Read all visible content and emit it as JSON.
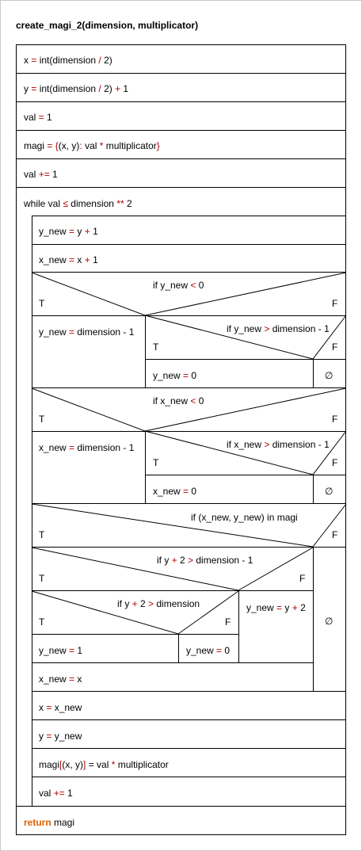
{
  "title": "create_magi_2(dimension, multiplicator)",
  "colors": {
    "operator": "#b00000",
    "keyword": "#e06000",
    "line": "#000000"
  },
  "stmts": {
    "x_init": [
      "x",
      " = ",
      "int(dimension ",
      "/",
      " 2)"
    ],
    "y_init": [
      "y",
      " = ",
      "int(dimension ",
      "/",
      " 2) ",
      "+",
      " 1"
    ],
    "val_init": [
      "val",
      " = ",
      "1"
    ],
    "magi_init": [
      "magi",
      " = ",
      "{",
      "(x, y)",
      ":",
      " val ",
      "*",
      " multiplicator",
      "}"
    ],
    "val_inc1": [
      "val ",
      "+=",
      " 1"
    ],
    "while_head": [
      "while val ",
      "≤",
      " dimension ",
      "**",
      " 2"
    ],
    "y_new_calc": [
      "y_new",
      " = ",
      "y ",
      "+",
      " 1"
    ],
    "x_new_calc": [
      "x_new",
      " = ",
      "x ",
      "+",
      " 1"
    ],
    "if_y_lt0": [
      "if y_new ",
      "<",
      " 0"
    ],
    "y_new_dim": [
      "y_new",
      " = ",
      "dimension - 1"
    ],
    "if_y_gt": [
      "if y_new ",
      ">",
      " dimension - 1"
    ],
    "y_new_zero": [
      "y_new",
      " = ",
      "0"
    ],
    "if_x_lt0": [
      "if x_new ",
      "<",
      " 0"
    ],
    "x_new_dim": [
      "x_new",
      " = ",
      "dimension - 1"
    ],
    "if_x_gt": [
      "if x_new ",
      ">",
      " dimension - 1"
    ],
    "x_new_zero": [
      "x_new",
      " = ",
      "0"
    ],
    "if_in_magi": [
      "if (x_new, y_new) in magi"
    ],
    "if_y2_gt_dim1": [
      "if y ",
      "+",
      " 2 ",
      ">",
      " dimension - 1"
    ],
    "if_y2_gt_dim": [
      "if y ",
      "+",
      " 2 ",
      ">",
      " dimension"
    ],
    "y_new_y2": [
      "y_new",
      " = ",
      "y ",
      "+",
      " 2"
    ],
    "y_new_one": [
      "y_new",
      " = ",
      "1"
    ],
    "y_new_zero2": [
      "y_new",
      " = ",
      "0"
    ],
    "x_new_x": [
      "x_new",
      " = ",
      "x"
    ],
    "x_assign": [
      "x",
      " = ",
      "x_new"
    ],
    "y_assign": [
      "y",
      " = ",
      "y_new"
    ],
    "magi_assign": [
      "magi",
      "[",
      "(x, y)",
      "]",
      " = val ",
      "*",
      " multiplicator"
    ],
    "val_inc2": [
      "val ",
      "+=",
      " 1"
    ],
    "return_stmt": [
      "return",
      " magi"
    ]
  },
  "labels": {
    "true": "T",
    "false": "F",
    "empty": "∅"
  }
}
